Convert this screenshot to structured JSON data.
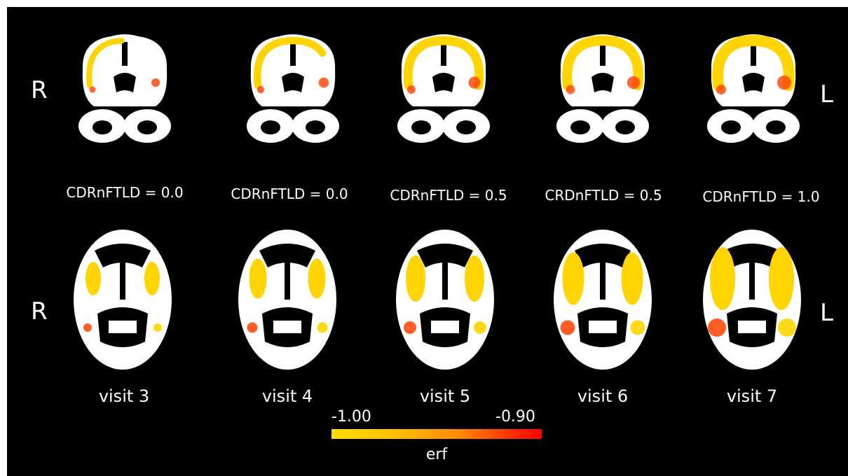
{
  "orientation": {
    "left": "R",
    "right": "L"
  },
  "columns": [
    {
      "cdr": "CDRnFTLD = 0.0",
      "visit": "visit 3",
      "coronal_extent": 0.35,
      "axial_extent": 0.3
    },
    {
      "cdr": "CDRnFTLD = 0.0",
      "visit": "visit 4",
      "coronal_extent": 0.55,
      "axial_extent": 0.45
    },
    {
      "cdr": "CDRnFTLD = 0.5",
      "visit": "visit 5",
      "coronal_extent": 0.75,
      "axial_extent": 0.6
    },
    {
      "cdr": "CRDnFTLD = 0.5",
      "visit": "visit 6",
      "coronal_extent": 0.85,
      "axial_extent": 0.75
    },
    {
      "cdr": "CDRnFTLD = 1.0",
      "visit": "visit 7",
      "coronal_extent": 1.0,
      "axial_extent": 1.0
    }
  ],
  "colorbar": {
    "min_label": "-1.00",
    "max_label": "-0.90",
    "name": "erf",
    "color_low": "#ffdd00",
    "color_high": "#ff0000"
  },
  "colors": {
    "background": "#000000",
    "brain": "#ffffff",
    "overlay_main": "#ffd400",
    "overlay_edge": "#ff4000"
  }
}
